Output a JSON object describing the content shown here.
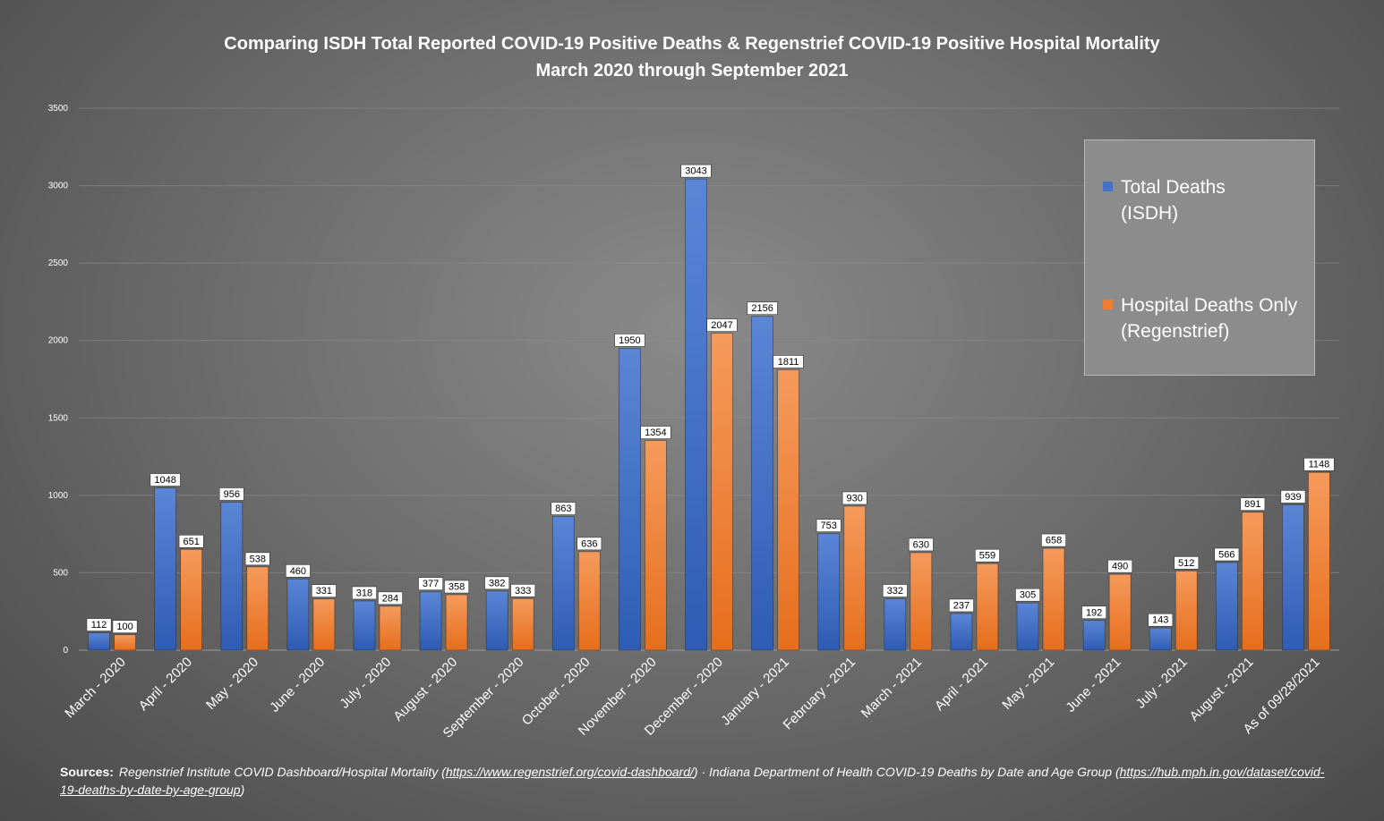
{
  "chart_data": {
    "type": "bar",
    "title": "Comparing ISDH Total Reported COVID-19 Positive Deaths & Regenstrief COVID-19 Positive Hospital Mortality",
    "subtitle": "March 2020 through September 2021",
    "xlabel": "",
    "ylabel": "",
    "ylim": [
      0,
      3500
    ],
    "yticks": [
      "0",
      "500",
      "1000",
      "1500",
      "2000",
      "2500",
      "3000",
      "3500"
    ],
    "grid": true,
    "legend_position": "top-right",
    "categories": [
      "March - 2020",
      "April - 2020",
      "May - 2020",
      "June - 2020",
      "July - 2020",
      "August - 2020",
      "September - 2020",
      "October - 2020",
      "November - 2020",
      "December - 2020",
      "January - 2021",
      "February - 2021",
      "March - 2021",
      "April - 2021",
      "May - 2021",
      "June - 2021",
      "July - 2021",
      "August - 2021",
      "As of 09/28/2021"
    ],
    "series": [
      {
        "name": "Total Deaths (ISDH)",
        "legend_lines": [
          "Total Deaths",
          "(ISDH)"
        ],
        "color": "#4472c4",
        "values": [
          112,
          1048,
          956,
          460,
          318,
          377,
          382,
          863,
          1950,
          3043,
          2156,
          753,
          332,
          237,
          305,
          192,
          143,
          566,
          939
        ]
      },
      {
        "name": "Hospital Deaths Only (Regenstrief)",
        "legend_lines": [
          "Hospital Deaths Only",
          "(Regenstrief)"
        ],
        "color": "#ed7d31",
        "values": [
          100,
          651,
          538,
          331,
          284,
          358,
          333,
          636,
          1354,
          2047,
          1811,
          930,
          630,
          559,
          658,
          490,
          512,
          891,
          1148
        ]
      }
    ]
  },
  "sources": {
    "label": "Sources:",
    "text1": "Regenstrief Institute COVID Dashboard/Hospital Mortality (",
    "link1": "https://www.regenstrief.org/covid-dashboard/",
    "text2": ")  · Indiana Department of Health COVID-19 Deaths by Date and Age Group (",
    "link2": "https://hub.mph.in.gov/dataset/covid-19-deaths-by-date-by-age-group",
    "text3": ")"
  }
}
